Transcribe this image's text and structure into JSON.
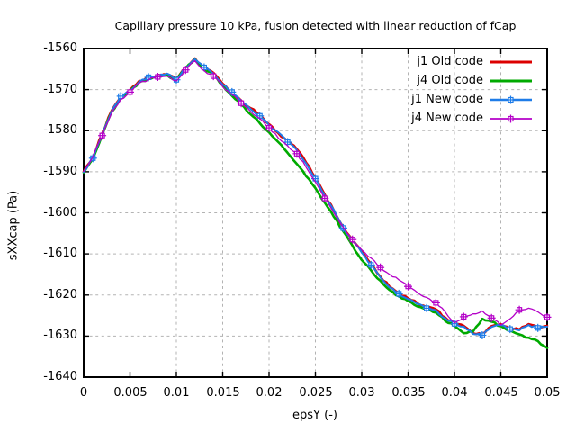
{
  "title": "Capillary pressure 10 kPa, fusion detected with linear reduction of fCap",
  "chart_data": {
    "type": "line",
    "title": "Capillary pressure 10 kPa, fusion detected with linear reduction of fCap",
    "xlabel": "epsY (-)",
    "ylabel": "sXXcap (Pa)",
    "xlim": [
      0,
      0.05
    ],
    "ylim": [
      -1640,
      -1560
    ],
    "grid": true,
    "legend_position": "top-right-inside",
    "x_tick_labels": [
      "0",
      "0.005",
      "0.01",
      "0.015",
      "0.02",
      "0.025",
      "0.03",
      "0.035",
      "0.04",
      "0.045",
      "0.05"
    ],
    "x_tick_values": [
      0,
      0.005,
      0.01,
      0.015,
      0.02,
      0.025,
      0.03,
      0.035,
      0.04,
      0.045,
      0.05
    ],
    "y_tick_labels": [
      "-1560",
      "-1570",
      "-1580",
      "-1590",
      "-1600",
      "-1610",
      "-1620",
      "-1630",
      "-1640"
    ],
    "y_tick_values": [
      -1560,
      -1570,
      -1580,
      -1590,
      -1600,
      -1610,
      -1620,
      -1630,
      -1640
    ],
    "x": [
      0,
      0.001,
      0.002,
      0.003,
      0.004,
      0.005,
      0.006,
      0.007,
      0.008,
      0.009,
      0.01,
      0.011,
      0.012,
      0.013,
      0.014,
      0.015,
      0.016,
      0.017,
      0.018,
      0.019,
      0.02,
      0.021,
      0.022,
      0.023,
      0.024,
      0.025,
      0.026,
      0.027,
      0.028,
      0.029,
      0.03,
      0.031,
      0.032,
      0.033,
      0.034,
      0.035,
      0.036,
      0.037,
      0.038,
      0.039,
      0.04,
      0.041,
      0.042,
      0.043,
      0.044,
      0.045,
      0.046,
      0.047,
      0.048,
      0.049,
      0.05
    ],
    "series": [
      {
        "name": "j1 Old code",
        "color": "#dc0000",
        "line_width": 2.6,
        "marker": "none",
        "values": [
          -1590.0,
          -1586.5,
          -1580.7,
          -1575.2,
          -1571.9,
          -1570.1,
          -1567.9,
          -1567.2,
          -1566.4,
          -1566.3,
          -1567.4,
          -1564.6,
          -1562.4,
          -1564.8,
          -1565.9,
          -1568.6,
          -1570.8,
          -1572.7,
          -1574.5,
          -1576.2,
          -1578.4,
          -1580.6,
          -1582.6,
          -1584.5,
          -1587.8,
          -1591.5,
          -1595.5,
          -1599.5,
          -1603.5,
          -1606.5,
          -1609.5,
          -1612.5,
          -1615.5,
          -1618.0,
          -1619.5,
          -1620.8,
          -1622.0,
          -1623.0,
          -1623.5,
          -1625.5,
          -1626.8,
          -1627.5,
          -1629.3,
          -1629.6,
          -1627.6,
          -1627.1,
          -1628.1,
          -1628.4,
          -1627.1,
          -1627.8,
          -1627.5
        ]
      },
      {
        "name": "j4 Old code",
        "color": "#00aa00",
        "line_width": 2.6,
        "marker": "none",
        "values": [
          -1590.2,
          -1586.8,
          -1581.0,
          -1575.5,
          -1572.2,
          -1570.4,
          -1568.2,
          -1567.4,
          -1566.6,
          -1566.5,
          -1567.6,
          -1564.9,
          -1562.6,
          -1565.2,
          -1566.4,
          -1569.0,
          -1571.5,
          -1573.5,
          -1576.0,
          -1578.2,
          -1580.4,
          -1582.8,
          -1585.4,
          -1588.1,
          -1591.1,
          -1594.0,
          -1597.5,
          -1601.0,
          -1604.5,
          -1608.0,
          -1611.5,
          -1614.0,
          -1616.5,
          -1618.8,
          -1620.3,
          -1621.5,
          -1622.8,
          -1623.3,
          -1624.3,
          -1626.3,
          -1627.6,
          -1629.3,
          -1628.9,
          -1625.8,
          -1626.5,
          -1627.6,
          -1628.6,
          -1629.6,
          -1630.4,
          -1631.2,
          -1632.9
        ]
      },
      {
        "name": "j1 New code",
        "color": "#1e7ce8",
        "line_width": 2.0,
        "marker": "boxed-plus",
        "marker_every": 3,
        "marker_offset": 1,
        "values": [
          -1590.1,
          -1586.7,
          -1580.9,
          -1575.4,
          -1571.6,
          -1570.3,
          -1568.1,
          -1567.0,
          -1566.6,
          -1566.1,
          -1567.6,
          -1564.8,
          -1562.6,
          -1564.6,
          -1566.2,
          -1568.8,
          -1570.6,
          -1572.9,
          -1574.7,
          -1576.4,
          -1578.6,
          -1580.4,
          -1582.8,
          -1584.7,
          -1588.0,
          -1591.7,
          -1595.7,
          -1599.3,
          -1603.7,
          -1606.7,
          -1609.7,
          -1612.7,
          -1615.7,
          -1618.2,
          -1619.7,
          -1621.0,
          -1622.2,
          -1623.2,
          -1623.7,
          -1625.7,
          -1627.0,
          -1627.7,
          -1629.5,
          -1629.8,
          -1627.8,
          -1627.3,
          -1628.3,
          -1628.6,
          -1627.3,
          -1628.0,
          -1627.7
        ]
      },
      {
        "name": "j4 New code",
        "color": "#b400c8",
        "line_width": 1.3,
        "marker": "boxed-plus",
        "marker_every": 3,
        "marker_offset": 2,
        "values": [
          -1589.9,
          -1586.3,
          -1581.2,
          -1575.8,
          -1572.4,
          -1570.6,
          -1568.4,
          -1567.6,
          -1566.9,
          -1566.7,
          -1567.9,
          -1565.2,
          -1563.0,
          -1565.4,
          -1566.7,
          -1569.3,
          -1571.2,
          -1573.3,
          -1575.3,
          -1577.0,
          -1579.3,
          -1581.8,
          -1583.7,
          -1585.6,
          -1588.9,
          -1592.5,
          -1596.5,
          -1600.0,
          -1603.5,
          -1606.5,
          -1609.0,
          -1611.0,
          -1613.3,
          -1615.0,
          -1616.3,
          -1617.9,
          -1619.4,
          -1620.6,
          -1621.9,
          -1624.1,
          -1626.8,
          -1625.3,
          -1624.6,
          -1623.9,
          -1625.6,
          -1627.3,
          -1625.8,
          -1623.6,
          -1623.2,
          -1624.1,
          -1625.4
        ]
      }
    ],
    "style": {
      "grid_color": "#b3b3b3",
      "border_color": "#000000",
      "background": "#ffffff"
    }
  }
}
